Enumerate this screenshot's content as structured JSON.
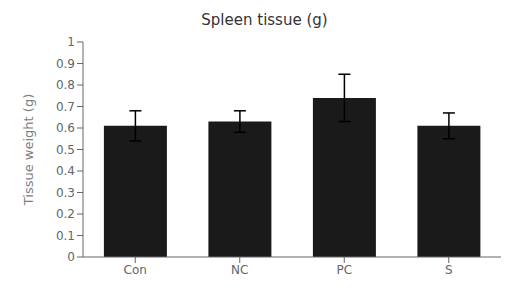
{
  "chart_data": {
    "type": "bar",
    "title": "Spleen tissue (g)",
    "y_label": "Tissue weight (g)",
    "categories": [
      "Con",
      "NC",
      "PC",
      "S"
    ],
    "values": [
      0.61,
      0.63,
      0.74,
      0.61
    ],
    "errors": [
      0.07,
      0.05,
      0.11,
      0.06
    ],
    "color": "#1a1a1a",
    "ylim": [
      0,
      1.0
    ],
    "yticks": [
      0,
      0.1,
      0.2,
      0.3,
      0.4,
      0.5,
      0.6,
      0.7,
      0.8,
      0.9,
      1
    ],
    "grid": false
  }
}
